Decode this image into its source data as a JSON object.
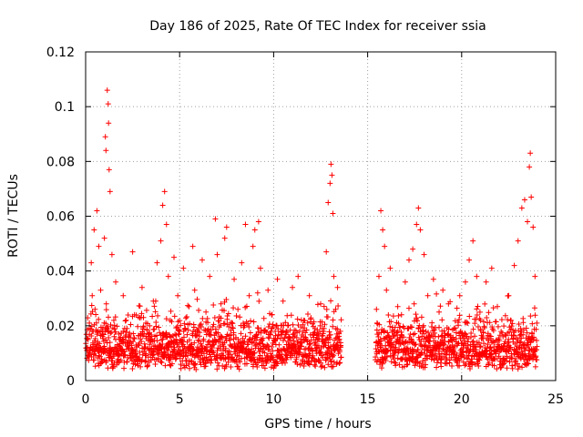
{
  "chart_data": {
    "type": "scatter",
    "title": "Day 186 of 2025, Rate Of TEC Index for receiver ssia",
    "xlabel": "GPS time / hours",
    "ylabel": "ROTI / TECUs",
    "xlim": [
      0,
      25
    ],
    "ylim": [
      0,
      0.12
    ],
    "xticks": [
      0,
      5,
      10,
      15,
      20,
      25
    ],
    "xtick_labels": [
      "0",
      "5",
      "10",
      "15",
      "20",
      "25"
    ],
    "yticks": [
      0,
      0.02,
      0.04,
      0.06,
      0.08,
      0.1,
      0.12
    ],
    "ytick_labels": [
      "0",
      "0.02",
      "0.04",
      "0.06",
      "0.08",
      "0.1",
      "0.12"
    ],
    "grid": true,
    "marker": "+",
    "marker_color": "#ff0000",
    "data_gap_hours": [
      13.6,
      15.4
    ],
    "series": [
      {
        "points": [
          [
            0.1,
            0.012
          ],
          [
            0.2,
            0.021
          ],
          [
            0.3,
            0.043
          ],
          [
            0.35,
            0.031
          ],
          [
            0.4,
            0.018
          ],
          [
            0.45,
            0.055
          ],
          [
            0.5,
            0.026
          ],
          [
            0.6,
            0.062
          ],
          [
            0.65,
            0.014
          ],
          [
            0.7,
            0.049
          ],
          [
            0.8,
            0.033
          ],
          [
            0.9,
            0.017
          ],
          [
            1.0,
            0.052
          ],
          [
            1.1,
            0.028
          ],
          [
            1.15,
            0.106
          ],
          [
            1.2,
            0.101
          ],
          [
            1.22,
            0.094
          ],
          [
            1.25,
            0.077
          ],
          [
            1.3,
            0.069
          ],
          [
            1.05,
            0.089
          ],
          [
            1.08,
            0.084
          ],
          [
            1.4,
            0.046
          ],
          [
            1.5,
            0.022
          ],
          [
            1.6,
            0.036
          ],
          [
            1.8,
            0.015
          ],
          [
            2.0,
            0.031
          ],
          [
            2.2,
            0.019
          ],
          [
            2.5,
            0.047
          ],
          [
            2.6,
            0.024
          ],
          [
            2.8,
            0.013
          ],
          [
            3.0,
            0.034
          ],
          [
            3.2,
            0.021
          ],
          [
            3.4,
            0.016
          ],
          [
            3.6,
            0.029
          ],
          [
            3.8,
            0.043
          ],
          [
            4.0,
            0.051
          ],
          [
            4.1,
            0.064
          ],
          [
            4.2,
            0.069
          ],
          [
            4.3,
            0.057
          ],
          [
            4.4,
            0.038
          ],
          [
            4.5,
            0.022
          ],
          [
            4.7,
            0.045
          ],
          [
            4.9,
            0.031
          ],
          [
            5.0,
            0.018
          ],
          [
            5.2,
            0.041
          ],
          [
            5.5,
            0.027
          ],
          [
            5.7,
            0.049
          ],
          [
            5.8,
            0.033
          ],
          [
            6.0,
            0.019
          ],
          [
            6.2,
            0.044
          ],
          [
            6.4,
            0.025
          ],
          [
            6.6,
            0.038
          ],
          [
            6.8,
            0.014
          ],
          [
            6.9,
            0.059
          ],
          [
            7.0,
            0.046
          ],
          [
            7.2,
            0.028
          ],
          [
            7.4,
            0.052
          ],
          [
            7.5,
            0.056
          ],
          [
            7.7,
            0.021
          ],
          [
            7.9,
            0.037
          ],
          [
            8.1,
            0.026
          ],
          [
            8.3,
            0.043
          ],
          [
            8.5,
            0.057
          ],
          [
            8.7,
            0.031
          ],
          [
            8.9,
            0.049
          ],
          [
            9.0,
            0.055
          ],
          [
            9.2,
            0.058
          ],
          [
            9.3,
            0.041
          ],
          [
            9.5,
            0.018
          ],
          [
            9.7,
            0.033
          ],
          [
            9.9,
            0.024
          ],
          [
            10.2,
            0.037
          ],
          [
            10.5,
            0.029
          ],
          [
            10.8,
            0.016
          ],
          [
            11.0,
            0.034
          ],
          [
            11.3,
            0.038
          ],
          [
            11.6,
            0.022
          ],
          [
            11.9,
            0.031
          ],
          [
            12.2,
            0.019
          ],
          [
            12.5,
            0.028
          ],
          [
            12.8,
            0.047
          ],
          [
            12.9,
            0.065
          ],
          [
            13.0,
            0.072
          ],
          [
            13.05,
            0.079
          ],
          [
            13.1,
            0.075
          ],
          [
            13.15,
            0.061
          ],
          [
            13.2,
            0.038
          ],
          [
            13.3,
            0.026
          ],
          [
            13.4,
            0.034
          ],
          [
            13.5,
            0.015
          ],
          [
            15.5,
            0.021
          ],
          [
            15.6,
            0.038
          ],
          [
            15.7,
            0.062
          ],
          [
            15.8,
            0.055
          ],
          [
            15.9,
            0.049
          ],
          [
            16.0,
            0.033
          ],
          [
            16.2,
            0.041
          ],
          [
            16.4,
            0.018
          ],
          [
            16.6,
            0.027
          ],
          [
            16.8,
            0.024
          ],
          [
            17.0,
            0.036
          ],
          [
            17.2,
            0.044
          ],
          [
            17.4,
            0.048
          ],
          [
            17.6,
            0.057
          ],
          [
            17.7,
            0.063
          ],
          [
            17.8,
            0.055
          ],
          [
            18.0,
            0.046
          ],
          [
            18.2,
            0.031
          ],
          [
            18.5,
            0.037
          ],
          [
            18.8,
            0.025
          ],
          [
            19.0,
            0.033
          ],
          [
            19.3,
            0.028
          ],
          [
            19.6,
            0.019
          ],
          [
            19.9,
            0.031
          ],
          [
            20.2,
            0.036
          ],
          [
            20.4,
            0.044
          ],
          [
            20.6,
            0.051
          ],
          [
            20.8,
            0.038
          ],
          [
            21.0,
            0.022
          ],
          [
            21.3,
            0.036
          ],
          [
            21.6,
            0.041
          ],
          [
            21.9,
            0.027
          ],
          [
            22.2,
            0.016
          ],
          [
            22.5,
            0.031
          ],
          [
            22.8,
            0.042
          ],
          [
            23.0,
            0.051
          ],
          [
            23.2,
            0.063
          ],
          [
            23.35,
            0.066
          ],
          [
            23.5,
            0.058
          ],
          [
            23.6,
            0.078
          ],
          [
            23.65,
            0.083
          ],
          [
            23.7,
            0.067
          ],
          [
            23.8,
            0.056
          ],
          [
            23.9,
            0.038
          ],
          [
            24.0,
            0.021
          ]
        ]
      }
    ]
  }
}
